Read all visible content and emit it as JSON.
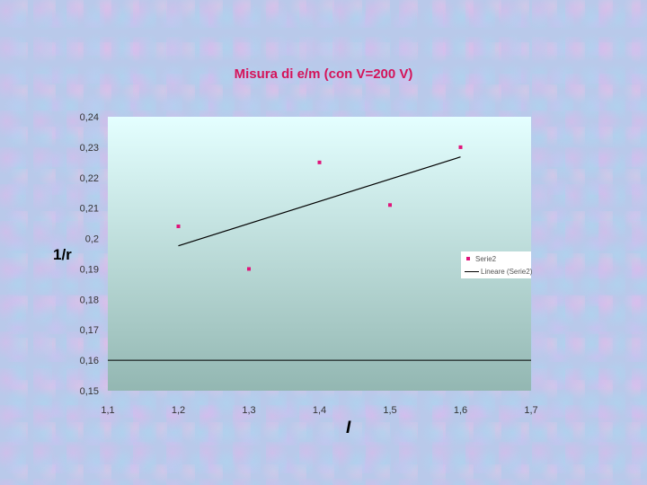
{
  "chart_data": {
    "type": "scatter",
    "title": "Misura di  e/m (con V=200 V)",
    "xlabel": "I",
    "ylabel": "1/r",
    "xlim": [
      1.1,
      1.7
    ],
    "ylim": [
      0.15,
      0.24
    ],
    "x_ticks": [
      "1,1",
      "1,2",
      "1,3",
      "1,4",
      "1,5",
      "1,6",
      "1,7"
    ],
    "y_ticks": [
      "0,24",
      "0,23",
      "0,22",
      "0,21",
      "0,2",
      "0,19",
      "0,18",
      "0,17",
      "0,16",
      "0,15"
    ],
    "grid": "horizontal line at 0,16",
    "legend_position": "right",
    "series": [
      {
        "name": "Serie2",
        "kind": "scatter",
        "color": "#e0147a",
        "x": [
          1.2,
          1.3,
          1.4,
          1.5,
          1.6
        ],
        "y": [
          0.204,
          0.19,
          0.225,
          0.211,
          0.23
        ]
      },
      {
        "name": "Lineare (Serie2)",
        "kind": "trendline",
        "color": "#000000",
        "x": [
          1.2,
          1.6
        ],
        "y": [
          0.1976,
          0.2268
        ]
      }
    ]
  }
}
